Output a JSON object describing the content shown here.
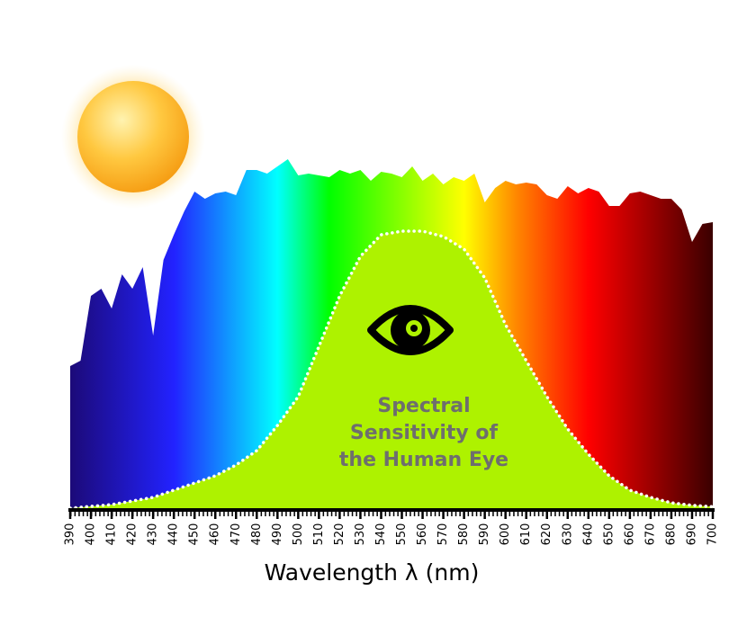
{
  "chart_data": {
    "type": "area",
    "xlabel": "Wavelength λ (nm)",
    "annotation": [
      "Spectral",
      "Sensitivity of",
      "the Human Eye"
    ],
    "xlim": [
      390,
      700
    ],
    "xticks": [
      390,
      400,
      410,
      420,
      430,
      440,
      450,
      460,
      470,
      480,
      490,
      500,
      510,
      520,
      530,
      540,
      550,
      560,
      570,
      580,
      590,
      600,
      610,
      620,
      630,
      640,
      650,
      660,
      670,
      680,
      690,
      700
    ],
    "ylim": [
      0,
      1
    ],
    "series": [
      {
        "fill": "spectrum",
        "gradient": [
          {
            "x": 390,
            "color": "#1c0a78"
          },
          {
            "x": 440,
            "color": "#2222ff"
          },
          {
            "x": 490,
            "color": "#00ffff"
          },
          {
            "x": 515,
            "color": "#00ff00"
          },
          {
            "x": 580,
            "color": "#ffff00"
          },
          {
            "x": 605,
            "color": "#ff8800"
          },
          {
            "x": 640,
            "color": "#ff0000"
          },
          {
            "x": 700,
            "color": "#3a0000"
          }
        ],
        "x": [
          390,
          395,
          400,
          405,
          410,
          415,
          420,
          425,
          430,
          435,
          440,
          445,
          450,
          455,
          460,
          465,
          470,
          475,
          480,
          485,
          490,
          495,
          500,
          505,
          510,
          515,
          520,
          525,
          530,
          535,
          540,
          545,
          550,
          555,
          560,
          565,
          570,
          575,
          580,
          585,
          590,
          595,
          600,
          605,
          610,
          615,
          620,
          625,
          630,
          635,
          640,
          645,
          650,
          655,
          660,
          665,
          670,
          675,
          680,
          685,
          690,
          695,
          700
        ],
        "values": [
          0.395,
          0.41,
          0.59,
          0.61,
          0.555,
          0.65,
          0.61,
          0.67,
          0.48,
          0.69,
          0.76,
          0.825,
          0.88,
          0.86,
          0.875,
          0.88,
          0.87,
          0.94,
          0.94,
          0.93,
          0.95,
          0.97,
          0.925,
          0.93,
          0.925,
          0.92,
          0.94,
          0.93,
          0.94,
          0.91,
          0.935,
          0.93,
          0.92,
          0.95,
          0.91,
          0.93,
          0.9,
          0.92,
          0.91,
          0.93,
          0.85,
          0.89,
          0.91,
          0.9,
          0.905,
          0.9,
          0.87,
          0.86,
          0.895,
          0.875,
          0.89,
          0.88,
          0.84,
          0.84,
          0.875,
          0.88,
          0.87,
          0.86,
          0.86,
          0.83,
          0.74,
          0.79,
          0.795
        ]
      },
      {
        "fill": "#aef200",
        "outline": "dotted",
        "x": [
          390,
          400,
          410,
          420,
          430,
          440,
          450,
          460,
          470,
          480,
          490,
          500,
          510,
          520,
          530,
          540,
          550,
          560,
          570,
          580,
          590,
          600,
          610,
          620,
          630,
          640,
          650,
          660,
          670,
          680,
          690,
          700
        ],
        "values": [
          0,
          0.005,
          0.01,
          0.02,
          0.03,
          0.05,
          0.07,
          0.09,
          0.12,
          0.16,
          0.23,
          0.31,
          0.45,
          0.59,
          0.7,
          0.76,
          0.77,
          0.77,
          0.755,
          0.72,
          0.64,
          0.51,
          0.41,
          0.31,
          0.22,
          0.15,
          0.09,
          0.05,
          0.03,
          0.015,
          0.008,
          0.004
        ]
      }
    ]
  }
}
